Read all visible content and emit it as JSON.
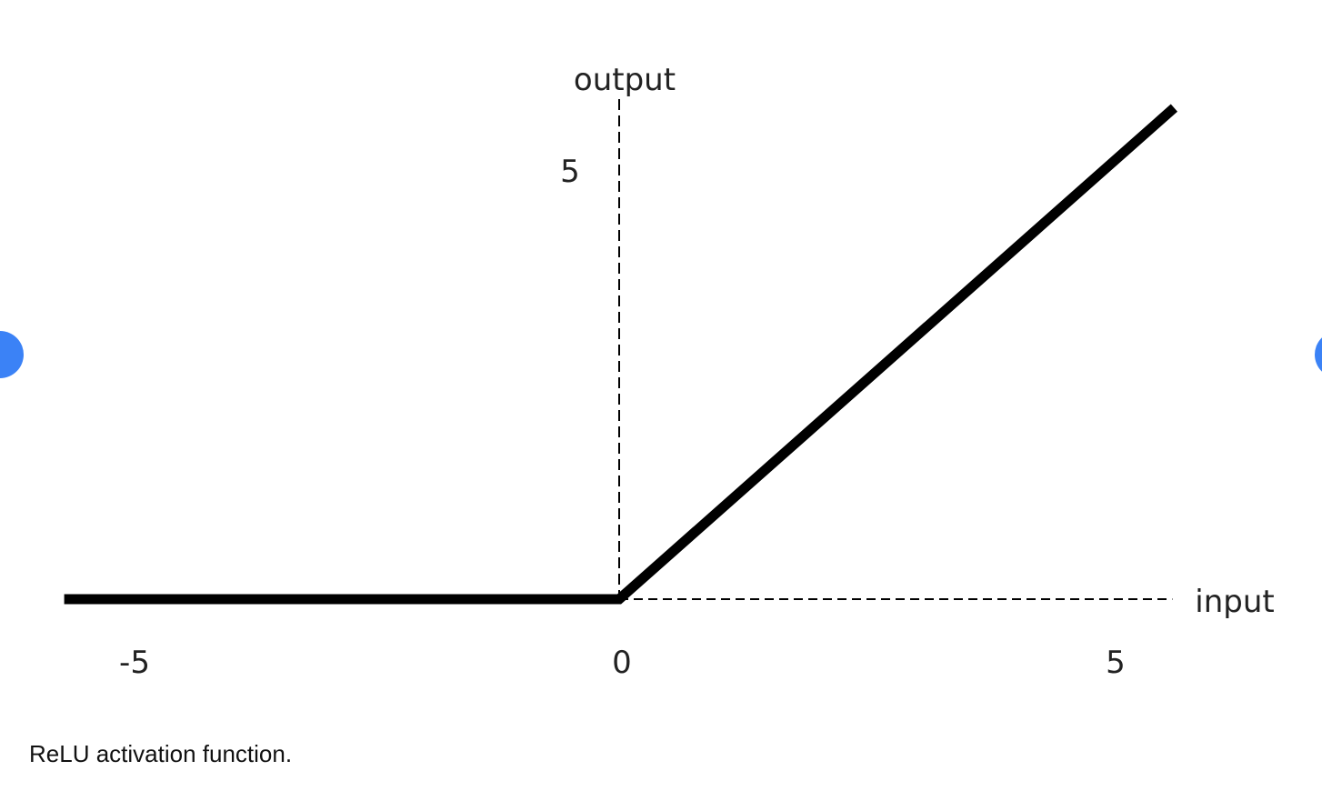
{
  "chart_data": {
    "type": "line",
    "xlabel": "input",
    "ylabel": "output",
    "x_ticks": [
      "-5",
      "0",
      "5"
    ],
    "y_ticks": [
      "5"
    ],
    "xlim": [
      -5.6,
      5.6
    ],
    "ylim": [
      0,
      5.7
    ],
    "series": [
      {
        "x": [
          -5.6,
          0,
          5.6
        ],
        "y": [
          0,
          0,
          5.6
        ]
      }
    ]
  },
  "caption": "ReLU activation function.",
  "colors": {
    "line": "#000000",
    "axis": "#000000",
    "nav_dot": "#3b82f6"
  },
  "nav": {
    "prev_icon": "chevron-left-icon",
    "next_icon": "chevron-right-icon"
  }
}
